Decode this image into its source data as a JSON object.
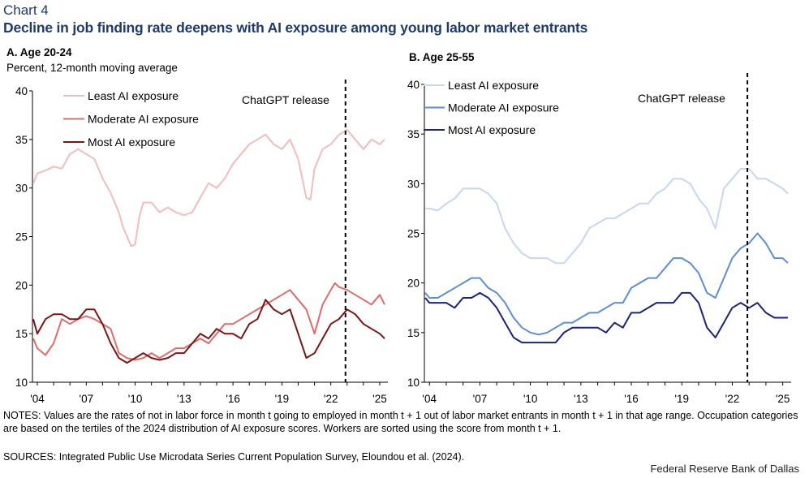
{
  "header": {
    "label": "Chart 4",
    "title": "Decline in job finding rate deepens with AI exposure among young labor market entrants"
  },
  "footer": {
    "notes": "NOTES: Values are the rates of not in labor force in month t going to employed in month t + 1 out of labor market entrants in month t + 1 in that age range. Occupation categories are based on the tertiles of the 2024 distribution of AI exposure scores. Workers are sorted using the score from month t + 1.",
    "sources": "SOURCES: Integrated Public Use Microdata Series Current Population Survey, Eloundou et al. (2024).",
    "credit": "Federal Reserve Bank of Dallas"
  },
  "chart_data": [
    {
      "panel": "A",
      "type": "line",
      "title": "A. Age 20-24",
      "subtitle": "Percent, 12-month moving average",
      "xlabel": "",
      "ylabel": "",
      "ylim": [
        10,
        40
      ],
      "xlim": [
        2003.7,
        2025.5
      ],
      "yticks": [
        10,
        15,
        20,
        25,
        30,
        35,
        40
      ],
      "xticks": [
        "'04",
        "'07",
        "'10",
        "'13",
        "'16",
        "'19",
        "'22",
        "'25"
      ],
      "xtick_values": [
        2004,
        2007,
        2010,
        2013,
        2016,
        2019,
        2022,
        2025
      ],
      "grid": false,
      "legend": "top-left",
      "annotation": {
        "label": "ChatGPT release",
        "x": 2022.9
      },
      "series": [
        {
          "name": "Least AI exposure",
          "color": "#f5bcbc",
          "x": [
            2003.75,
            2004,
            2004.5,
            2005,
            2005.5,
            2006,
            2006.5,
            2007,
            2007.5,
            2008,
            2008.5,
            2009,
            2009.25,
            2009.5,
            2009.75,
            2010,
            2010.25,
            2010.5,
            2011,
            2011.5,
            2012,
            2012.5,
            2013,
            2013.5,
            2014,
            2014.5,
            2015,
            2015.5,
            2016,
            2016.5,
            2017,
            2017.5,
            2018,
            2018.5,
            2019,
            2019.5,
            2020,
            2020.25,
            2020.5,
            2020.75,
            2021,
            2021.5,
            2022,
            2022.5,
            2023,
            2023.5,
            2024,
            2024.5,
            2025,
            2025.3
          ],
          "y": [
            30.5,
            31.5,
            31.8,
            32.2,
            32.0,
            33.5,
            34.0,
            33.5,
            33.0,
            31.0,
            29.5,
            27.5,
            26.0,
            25.0,
            24.0,
            24.2,
            27.0,
            28.5,
            28.5,
            27.5,
            28.0,
            27.5,
            27.2,
            27.5,
            29.0,
            30.5,
            30.0,
            31.0,
            32.5,
            33.5,
            34.5,
            35.0,
            35.5,
            34.5,
            34.0,
            35.0,
            33.0,
            31.0,
            29.0,
            28.8,
            32.0,
            34.0,
            34.5,
            35.5,
            36.0,
            35.0,
            34.0,
            35.0,
            34.5,
            35.0
          ]
        },
        {
          "name": "Moderate AI exposure",
          "color": "#e36a6a",
          "x": [
            2003.75,
            2004,
            2004.5,
            2005,
            2005.5,
            2006,
            2006.5,
            2007,
            2007.5,
            2008,
            2008.5,
            2009,
            2009.5,
            2010,
            2010.5,
            2011,
            2011.5,
            2012,
            2012.5,
            2013,
            2013.5,
            2014,
            2014.5,
            2015,
            2015.5,
            2016,
            2016.5,
            2017,
            2017.5,
            2018,
            2018.5,
            2019,
            2019.5,
            2020,
            2020.5,
            2021,
            2021.5,
            2022,
            2022.25,
            2022.5,
            2023,
            2023.5,
            2024,
            2024.5,
            2025,
            2025.3
          ],
          "y": [
            14.5,
            13.5,
            12.8,
            14.0,
            16.5,
            16.0,
            16.5,
            16.8,
            16.5,
            16.0,
            15.5,
            13.0,
            12.5,
            12.3,
            12.5,
            13.0,
            12.5,
            13.0,
            13.5,
            13.5,
            14.0,
            14.5,
            14.0,
            15.0,
            16.0,
            16.0,
            16.5,
            17.0,
            17.5,
            18.0,
            18.5,
            19.0,
            19.5,
            18.5,
            17.5,
            15.0,
            18.0,
            19.5,
            20.2,
            19.8,
            19.5,
            19.0,
            18.5,
            18.0,
            19.0,
            18.0
          ]
        },
        {
          "name": "Most AI exposure",
          "color": "#7e1416",
          "x": [
            2003.75,
            2004,
            2004.5,
            2005,
            2005.5,
            2006,
            2006.5,
            2007,
            2007.5,
            2008,
            2008.5,
            2009,
            2009.5,
            2010,
            2010.5,
            2011,
            2011.5,
            2012,
            2012.5,
            2013,
            2013.5,
            2014,
            2014.5,
            2015,
            2015.5,
            2016,
            2016.5,
            2017,
            2017.5,
            2018,
            2018.5,
            2019,
            2019.5,
            2020,
            2020.5,
            2021,
            2021.5,
            2022,
            2022.5,
            2023,
            2023.5,
            2024,
            2024.5,
            2025,
            2025.3
          ],
          "y": [
            16.5,
            15.0,
            16.5,
            17.0,
            17.0,
            16.5,
            16.5,
            17.5,
            17.5,
            16.0,
            14.0,
            12.5,
            12.0,
            12.5,
            13.0,
            12.5,
            12.3,
            12.5,
            13.0,
            13.0,
            14.0,
            15.0,
            14.5,
            15.5,
            15.0,
            15.0,
            14.5,
            16.0,
            16.5,
            18.5,
            17.5,
            17.0,
            17.5,
            15.0,
            12.5,
            13.0,
            14.5,
            16.0,
            16.5,
            17.5,
            17.0,
            16.0,
            15.5,
            15.0,
            14.5
          ]
        }
      ]
    },
    {
      "panel": "B",
      "type": "line",
      "title": "B. Age 25-55",
      "xlabel": "",
      "ylabel": "",
      "ylim": [
        10,
        40
      ],
      "xlim": [
        2003.7,
        2025.5
      ],
      "yticks": [
        10,
        15,
        20,
        25,
        30,
        35,
        40
      ],
      "xticks": [
        "'04",
        "'07",
        "'10",
        "'13",
        "'16",
        "'19",
        "'22",
        "'25"
      ],
      "xtick_values": [
        2004,
        2007,
        2010,
        2013,
        2016,
        2019,
        2022,
        2025
      ],
      "grid": false,
      "legend": "top-left",
      "annotation": {
        "label": "ChatGPT release",
        "x": 2022.9
      },
      "series": [
        {
          "name": "Least AI exposure",
          "color": "#c5d8f1",
          "x": [
            2003.75,
            2004,
            2004.5,
            2005,
            2005.5,
            2006,
            2006.5,
            2007,
            2007.5,
            2008,
            2008.5,
            2009,
            2009.5,
            2010,
            2010.5,
            2011,
            2011.5,
            2012,
            2012.5,
            2013,
            2013.5,
            2014,
            2014.5,
            2015,
            2015.5,
            2016,
            2016.5,
            2017,
            2017.5,
            2018,
            2018.5,
            2019,
            2019.5,
            2020,
            2020.5,
            2021,
            2021.5,
            2022,
            2022.5,
            2023,
            2023.5,
            2024,
            2024.5,
            2025,
            2025.3
          ],
          "y": [
            27.5,
            27.5,
            27.3,
            28.0,
            28.5,
            29.5,
            29.5,
            29.5,
            29.0,
            28.0,
            25.5,
            24.0,
            23.0,
            22.5,
            22.5,
            22.5,
            22.0,
            22.0,
            23.0,
            24.0,
            25.5,
            26.0,
            26.5,
            26.5,
            27.0,
            27.5,
            28.0,
            28.0,
            29.0,
            29.5,
            30.5,
            30.5,
            30.0,
            28.5,
            27.5,
            25.5,
            29.5,
            30.5,
            31.5,
            31.5,
            30.5,
            30.5,
            30.0,
            29.5,
            29.0
          ]
        },
        {
          "name": "Moderate AI exposure",
          "color": "#5b8ed6",
          "x": [
            2003.75,
            2004,
            2004.5,
            2005,
            2005.5,
            2006,
            2006.5,
            2007,
            2007.5,
            2008,
            2008.5,
            2009,
            2009.5,
            2010,
            2010.5,
            2011,
            2011.5,
            2012,
            2012.5,
            2013,
            2013.5,
            2014,
            2014.5,
            2015,
            2015.5,
            2016,
            2016.5,
            2017,
            2017.5,
            2018,
            2018.5,
            2019,
            2019.5,
            2020,
            2020.5,
            2021,
            2021.5,
            2022,
            2022.5,
            2023,
            2023.5,
            2024,
            2024.5,
            2025,
            2025.3
          ],
          "y": [
            19.0,
            18.5,
            18.5,
            19.0,
            19.5,
            20.0,
            20.5,
            20.5,
            19.5,
            19.0,
            18.0,
            16.5,
            15.5,
            15.0,
            14.8,
            15.0,
            15.5,
            16.0,
            16.0,
            16.5,
            17.0,
            17.0,
            17.5,
            18.0,
            18.0,
            19.5,
            20.0,
            20.5,
            20.5,
            21.5,
            22.5,
            22.5,
            22.0,
            21.0,
            19.0,
            18.5,
            20.5,
            22.5,
            23.5,
            24.0,
            25.0,
            24.0,
            22.5,
            22.5,
            22.0
          ]
        },
        {
          "name": "Most AI exposure",
          "color": "#1a237e",
          "x": [
            2003.75,
            2004,
            2004.5,
            2005,
            2005.5,
            2006,
            2006.5,
            2007,
            2007.5,
            2008,
            2008.5,
            2009,
            2009.5,
            2010,
            2010.5,
            2011,
            2011.5,
            2012,
            2012.5,
            2013,
            2013.5,
            2014,
            2014.5,
            2015,
            2015.5,
            2016,
            2016.5,
            2017,
            2017.5,
            2018,
            2018.5,
            2019,
            2019.5,
            2020,
            2020.5,
            2021,
            2021.5,
            2022,
            2022.5,
            2023,
            2023.5,
            2024,
            2024.5,
            2025,
            2025.3
          ],
          "y": [
            18.5,
            18.0,
            18.0,
            18.0,
            17.5,
            18.5,
            18.5,
            19.0,
            18.5,
            17.5,
            16.0,
            14.5,
            14.0,
            14.0,
            14.0,
            14.0,
            14.0,
            15.0,
            15.5,
            15.5,
            15.5,
            15.5,
            15.0,
            16.0,
            15.5,
            17.0,
            17.0,
            17.5,
            18.0,
            18.0,
            18.0,
            19.0,
            19.0,
            18.0,
            15.5,
            14.5,
            16.0,
            17.5,
            18.0,
            17.5,
            18.0,
            17.0,
            16.5,
            16.5,
            16.5
          ]
        }
      ]
    }
  ]
}
